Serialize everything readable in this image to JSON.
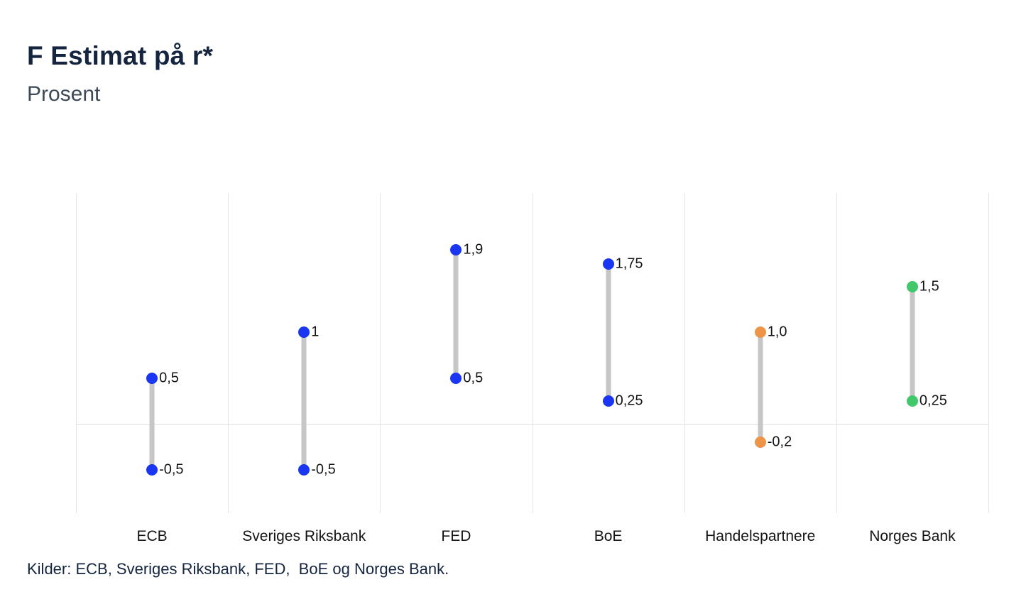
{
  "header": {
    "title": "F Estimat på r*",
    "subtitle": "Prosent"
  },
  "footer": {
    "source": "Kilder: ECB, Sveriges Riksbank, FED,  BoE og Norges Bank."
  },
  "colors": {
    "blue": "#1b36f0",
    "orange": "#ee9449",
    "green": "#40c86a",
    "connector": "#c6c6c6",
    "grid": "#e4e4e4",
    "title": "#15253f",
    "subtitle": "#3e4956",
    "value_label": "#141414"
  },
  "chart_data": {
    "type": "dumbbell-range",
    "title": "F Estimat på r*",
    "subtitle": "Prosent",
    "ylabel": "Prosent",
    "categories": [
      "ECB",
      "Sveriges Riksbank",
      "FED",
      "BoE",
      "Handelspartnere",
      "Norges Bank"
    ],
    "series": [
      {
        "category": "ECB",
        "high": 0.5,
        "low": -0.5,
        "high_label": "0,5",
        "low_label": "-0,5",
        "color_key": "blue"
      },
      {
        "category": "Sveriges Riksbank",
        "high": 1.0,
        "low": -0.5,
        "high_label": "1",
        "low_label": "-0,5",
        "color_key": "blue"
      },
      {
        "category": "FED",
        "high": 1.9,
        "low": 0.5,
        "high_label": "1,9",
        "low_label": "0,5",
        "color_key": "blue"
      },
      {
        "category": "BoE",
        "high": 1.75,
        "low": 0.25,
        "high_label": "1,75",
        "low_label": "0,25",
        "color_key": "blue"
      },
      {
        "category": "Handelspartnere",
        "high": 1.0,
        "low": -0.2,
        "high_label": "1,0",
        "low_label": "-0,2",
        "color_key": "orange"
      },
      {
        "category": "Norges Bank",
        "high": 1.5,
        "low": 0.25,
        "high_label": "1,5",
        "low_label": "0,25",
        "color_key": "green"
      }
    ],
    "ylim": [
      -0.97,
      2.52
    ],
    "grid": {
      "vertical_column_lines": true,
      "zero_line": true,
      "y_tick_labels": false
    },
    "legend": "none"
  }
}
